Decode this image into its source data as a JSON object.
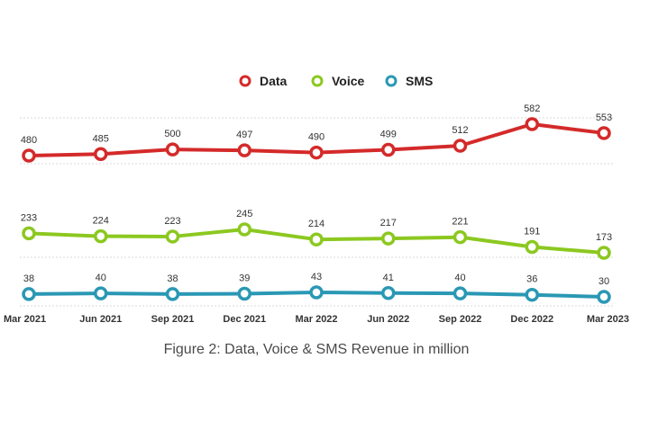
{
  "chart_data": {
    "type": "line",
    "title": "Figure 2: Data, Voice & SMS Revenue in million",
    "categories": [
      "Mar 2021",
      "Jun 2021",
      "Sep 2021",
      "Dec 2021",
      "Mar 2022",
      "Jun 2022",
      "Sep 2022",
      "Dec 2022",
      "Mar 2023"
    ],
    "series": [
      {
        "name": "Data",
        "color": "#d42a2a",
        "values": [
          480,
          485,
          500,
          497,
          490,
          499,
          512,
          582,
          553
        ]
      },
      {
        "name": "Voice",
        "color": "#8cc820",
        "values": [
          233,
          224,
          223,
          245,
          214,
          217,
          221,
          191,
          173
        ]
      },
      {
        "name": "SMS",
        "color": "#2a98b4",
        "values": [
          38,
          40,
          38,
          39,
          43,
          41,
          40,
          36,
          30
        ]
      }
    ],
    "legend": "top-center",
    "grid": true,
    "xlabel": "",
    "ylabel": ""
  }
}
